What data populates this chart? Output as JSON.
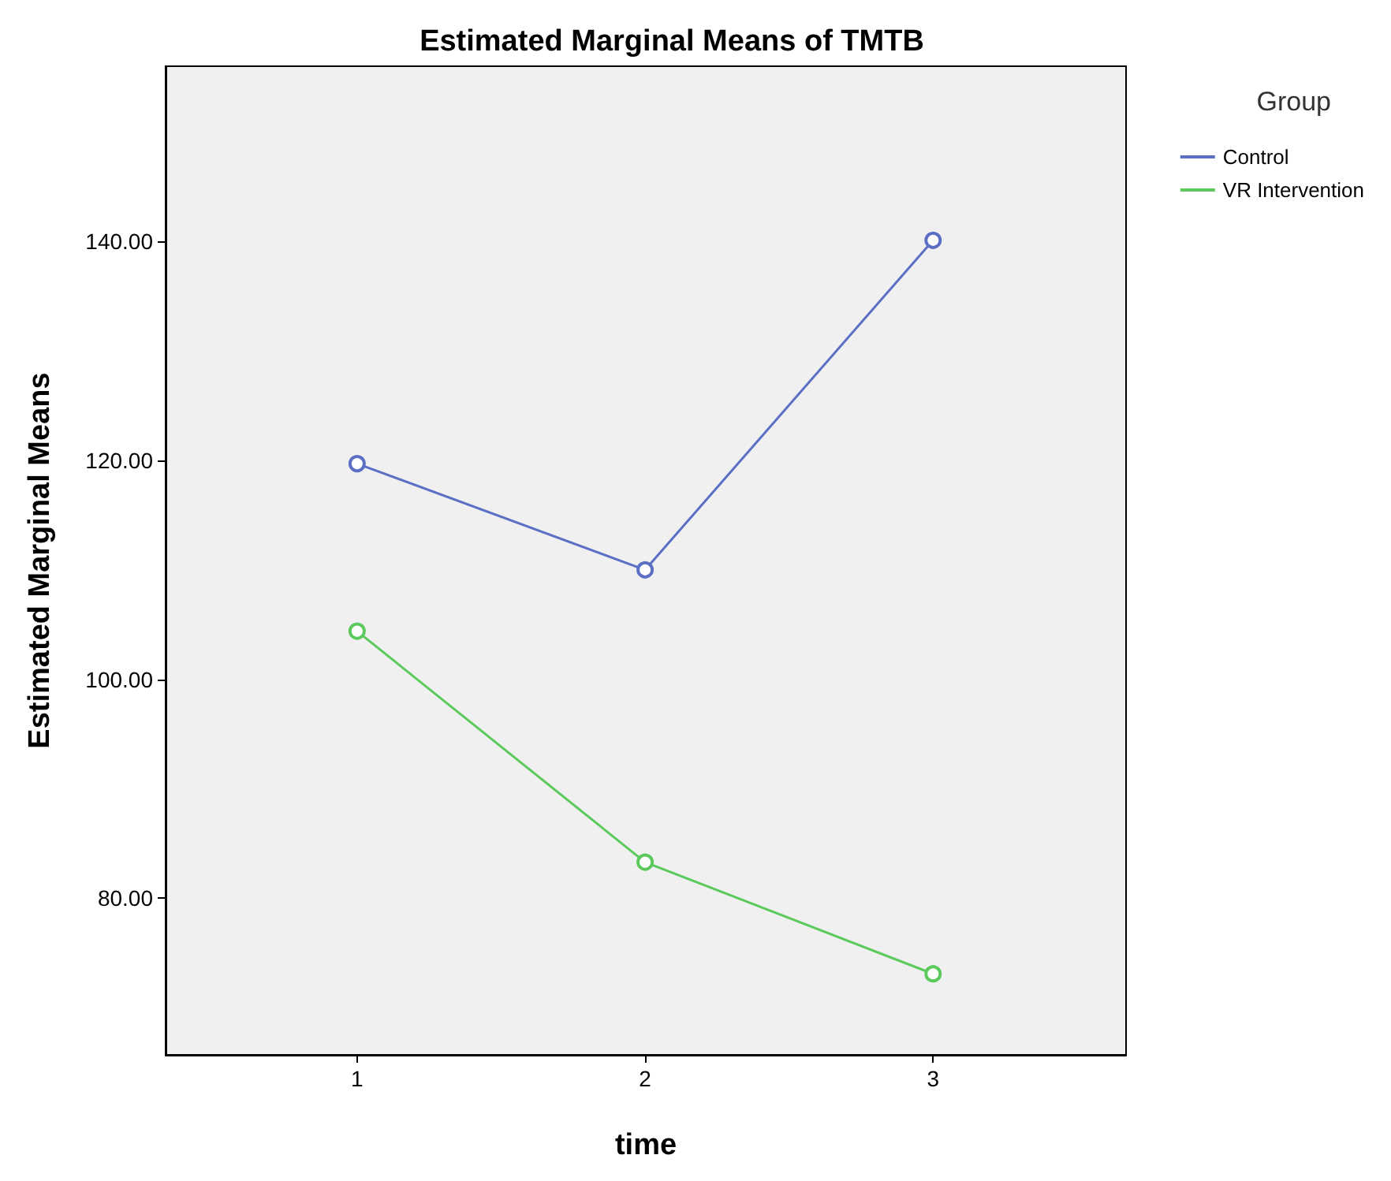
{
  "chart_data": {
    "type": "line",
    "title": "Estimated Marginal Means of TMTB",
    "xlabel": "time",
    "ylabel": "Estimated Marginal Means",
    "legend_title": "Group",
    "x": [
      1,
      2,
      3
    ],
    "series": [
      {
        "name": "Control",
        "color": "#5b6fc4",
        "values": [
          119.7,
          110.0,
          140.1
        ]
      },
      {
        "name": "VR Intervention",
        "color": "#5cc95c",
        "values": [
          104.4,
          83.3,
          73.1
        ]
      }
    ],
    "xlim": [
      0.335,
      3.67
    ],
    "xticks": [
      1,
      2,
      3
    ],
    "ylim": [
      65.7,
      156
    ],
    "yticks": [
      {
        "value": 80,
        "label": "80.00"
      },
      {
        "value": 100,
        "label": "100.00"
      },
      {
        "value": 120,
        "label": "120.00"
      },
      {
        "value": 140,
        "label": "140.00"
      }
    ],
    "grid": false,
    "legend": "top right",
    "marker": "circle",
    "line_style": "solid"
  }
}
